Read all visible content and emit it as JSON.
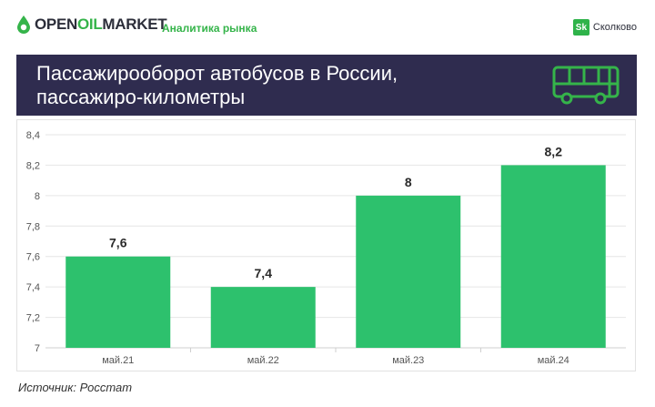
{
  "header": {
    "logo_part1": "OPEN",
    "logo_part2": "OIL",
    "logo_part3": "MARKET",
    "tagline": "Аналитика рынка",
    "partner_badge": "Sk",
    "partner_name": "Сколково"
  },
  "banner": {
    "title_line1": "Пассажирооборот автобусов в России,",
    "title_line2": "пассажиро-километры",
    "icon": "bus-icon",
    "background": "#2f2c4f"
  },
  "chart_data": {
    "type": "bar",
    "categories": [
      "май.21",
      "май.22",
      "май.23",
      "май.24"
    ],
    "values": [
      7.6,
      7.4,
      8,
      8.2
    ],
    "data_labels": [
      "7,6",
      "7,4",
      "8",
      "8,2"
    ],
    "ylim": [
      7,
      8.4
    ],
    "yticks": [
      "7",
      "7,2",
      "7,4",
      "7,6",
      "7,8",
      "8",
      "8,2",
      "8,4"
    ],
    "grid": true,
    "bar_color": "#2dc16d",
    "title": "",
    "xlabel": "",
    "ylabel": ""
  },
  "footer": {
    "source": "Источник: Росстат"
  }
}
